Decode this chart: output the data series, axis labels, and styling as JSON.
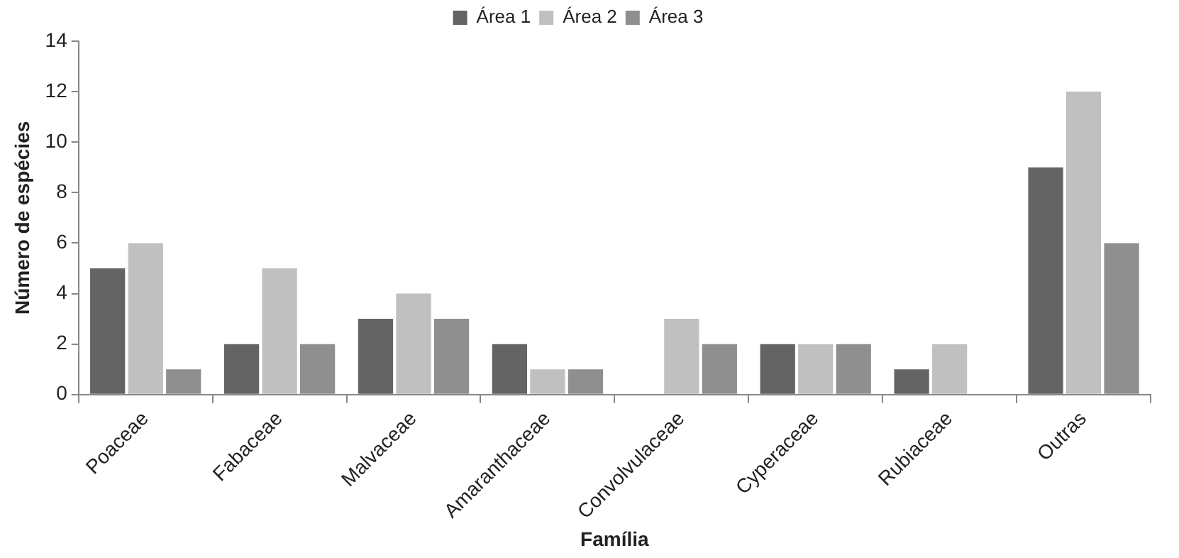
{
  "chart_data": {
    "type": "bar",
    "xlabel": "Família",
    "ylabel": "Número de espécies",
    "categories": [
      "Poaceae",
      "Fabaceae",
      "Malvaceae",
      "Amaranthaceae",
      "Convolvulaceae",
      "Cyperaceae",
      "Rubiaceae",
      "Outras"
    ],
    "series": [
      {
        "name": "Área 1",
        "color": "#646464",
        "values": [
          5,
          2,
          3,
          2,
          0,
          2,
          1,
          9
        ]
      },
      {
        "name": "Área 2",
        "color": "#c0c0c0",
        "values": [
          6,
          5,
          4,
          1,
          3,
          2,
          2,
          12
        ]
      },
      {
        "name": "Área 3",
        "color": "#8f8f8f",
        "values": [
          1,
          2,
          3,
          1,
          2,
          2,
          0,
          6
        ]
      }
    ],
    "ylim": [
      0,
      14
    ],
    "yticks": [
      0,
      2,
      4,
      6,
      8,
      10,
      12,
      14
    ],
    "grid": false,
    "legend": "top"
  }
}
